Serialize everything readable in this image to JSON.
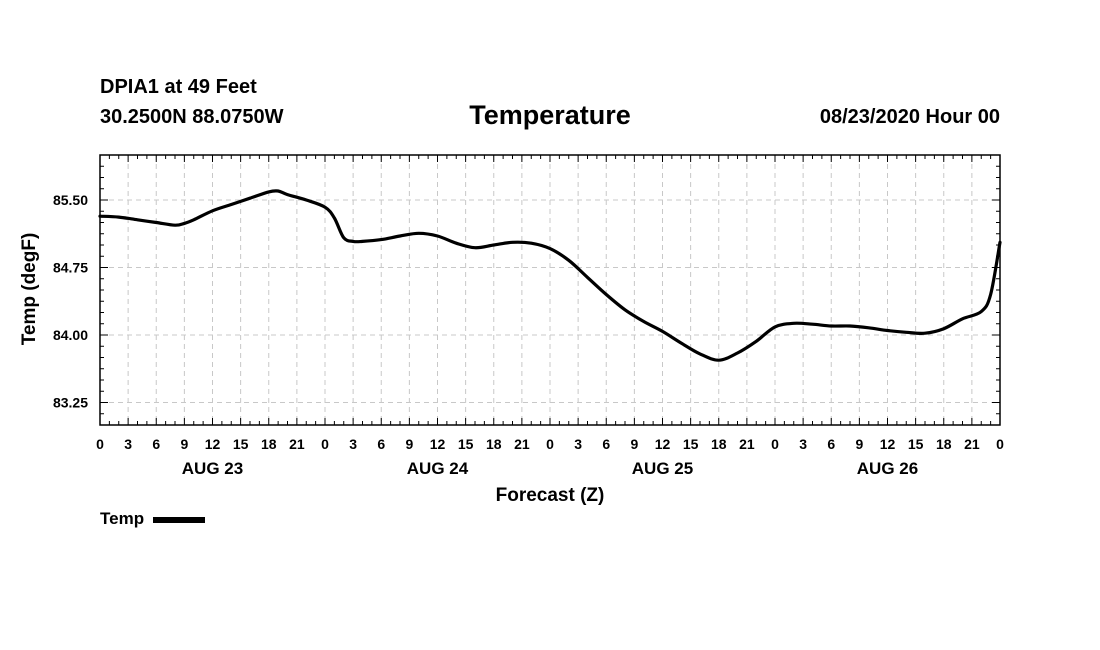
{
  "header": {
    "station": "DPIA1 at 49 Feet",
    "coords": "30.2500N 88.0750W",
    "datetime": "08/23/2020 Hour 00"
  },
  "chart_data": {
    "type": "line",
    "title": "Temperature",
    "xlabel": "Forecast (Z)",
    "ylabel": "Temp (degF)",
    "x_unit": "forecast hours from 08/23/2020 00Z",
    "xlim": [
      0,
      96
    ],
    "ylim": [
      83.0,
      86.0
    ],
    "y_ticks": [
      "85.50",
      "84.75",
      "84.00",
      "83.25"
    ],
    "y_tick_values": [
      85.5,
      84.75,
      84.0,
      83.25
    ],
    "x_tick_labels": [
      "0",
      "3",
      "6",
      "9",
      "12",
      "15",
      "18",
      "21",
      "0",
      "3",
      "6",
      "9",
      "12",
      "15",
      "18",
      "21",
      "0",
      "3",
      "6",
      "9",
      "12",
      "15",
      "18",
      "21",
      "0",
      "3",
      "6",
      "9",
      "12",
      "15",
      "18",
      "21",
      "0"
    ],
    "day_labels": [
      "AUG 23",
      "AUG 24",
      "AUG 25",
      "AUG 26"
    ],
    "day_label_hours": [
      12,
      36,
      60,
      84
    ],
    "grid": true,
    "legend_position": "bottom-left",
    "series": [
      {
        "name": "Temp",
        "color": "#000000",
        "x": [
          0,
          2,
          4,
          6,
          8,
          9,
          10,
          12,
          14,
          16,
          18,
          19,
          20,
          22,
          24,
          25,
          26,
          27,
          28,
          30,
          32,
          34,
          36,
          38,
          40,
          42,
          44,
          46,
          48,
          50,
          52,
          54,
          56,
          58,
          60,
          62,
          64,
          66,
          68,
          70,
          72,
          74,
          76,
          78,
          80,
          82,
          84,
          86,
          88,
          90,
          92,
          94,
          95,
          96
        ],
        "y": [
          85.32,
          85.31,
          85.28,
          85.25,
          85.22,
          85.24,
          85.28,
          85.38,
          85.45,
          85.52,
          85.59,
          85.6,
          85.56,
          85.5,
          85.42,
          85.3,
          85.08,
          85.04,
          85.04,
          85.06,
          85.1,
          85.13,
          85.1,
          85.02,
          84.97,
          85.0,
          85.03,
          85.02,
          84.96,
          84.83,
          84.64,
          84.45,
          84.28,
          84.15,
          84.04,
          83.91,
          83.79,
          83.72,
          83.8,
          83.93,
          84.09,
          84.13,
          84.12,
          84.1,
          84.1,
          84.08,
          84.05,
          84.03,
          84.02,
          84.07,
          84.18,
          84.26,
          84.45,
          85.03
        ]
      }
    ]
  }
}
